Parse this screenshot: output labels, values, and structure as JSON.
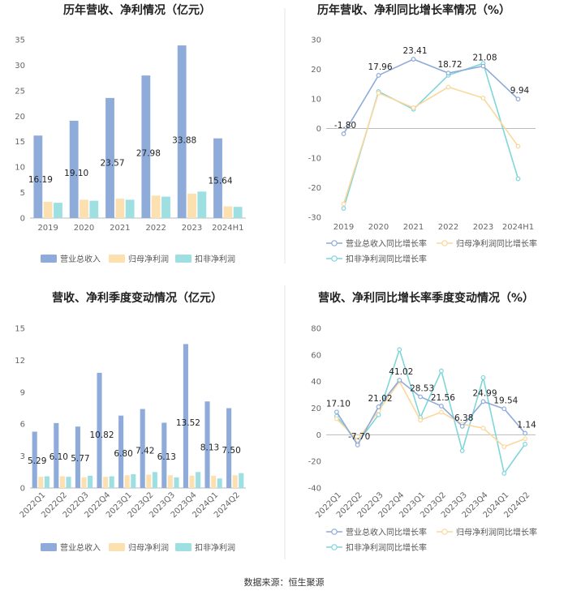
{
  "source_text": "数据来源：恒生聚源",
  "colors": {
    "revenue": "#8eabd9",
    "parent_profit": "#fde0b0",
    "deducted_profit": "#9ee0e2",
    "revenue_line": "#8eabd9",
    "parent_line": "#fbd79c",
    "deducted_line": "#7fd6d9",
    "axis": "#bbbbbb",
    "divider": "#e6e6e6"
  },
  "chart_data": [
    {
      "id": "annual_amount",
      "type": "bar",
      "title": "历年营收、净利情况（亿元）",
      "categories": [
        "2019",
        "2020",
        "2021",
        "2022",
        "2023",
        "2024H1"
      ],
      "ylim": [
        0,
        35
      ],
      "yticks": [
        "0",
        "5",
        "10",
        "15",
        "20",
        "25",
        "30",
        "35"
      ],
      "series": [
        {
          "name": "营业总收入",
          "values": [
            16.19,
            19.1,
            23.57,
            27.98,
            33.88,
            15.64
          ],
          "labels": [
            "16.19",
            "19.10",
            "23.57",
            "27.98",
            "33.88",
            "15.64"
          ]
        },
        {
          "name": "归母净利润",
          "values": [
            3.2,
            3.6,
            3.8,
            4.4,
            4.8,
            2.3
          ]
        },
        {
          "name": "扣非净利润",
          "values": [
            3.0,
            3.4,
            3.6,
            4.2,
            5.2,
            2.2
          ]
        }
      ]
    },
    {
      "id": "annual_growth",
      "type": "line",
      "title": "历年营收、净利同比增长率情况（%）",
      "categories": [
        "2019",
        "2020",
        "2021",
        "2022",
        "2023",
        "2024H1"
      ],
      "ylim": [
        -30,
        30
      ],
      "yticks": [
        "-30",
        "-20",
        "-10",
        "0",
        "10",
        "20",
        "30"
      ],
      "series": [
        {
          "name": "营业总收入同比增长率",
          "values": [
            -1.8,
            17.96,
            23.41,
            18.72,
            21.08,
            9.94
          ],
          "labels": [
            "-1.80",
            "17.96",
            "23.41",
            "18.72",
            "21.08",
            "9.94"
          ]
        },
        {
          "name": "归母净利润同比增长率",
          "values": [
            -25.5,
            12.0,
            7.0,
            14.0,
            10.3,
            -6.0
          ]
        },
        {
          "name": "扣非净利润同比增长率",
          "values": [
            -27.0,
            12.5,
            6.5,
            18.0,
            22.0,
            -17.0
          ]
        }
      ]
    },
    {
      "id": "quarterly_amount",
      "type": "bar",
      "title": "营收、净利季度变动情况（亿元）",
      "categories": [
        "2022Q1",
        "2022Q2",
        "2022Q3",
        "2022Q4",
        "2023Q1",
        "2023Q2",
        "2023Q3",
        "2023Q4",
        "2024Q1",
        "2024Q2"
      ],
      "ylim": [
        0,
        15
      ],
      "yticks": [
        "0",
        "3",
        "6",
        "9",
        "12",
        "15"
      ],
      "series": [
        {
          "name": "营业总收入",
          "values": [
            5.29,
            6.1,
            5.77,
            10.82,
            6.8,
            7.42,
            6.13,
            13.52,
            8.13,
            7.5
          ],
          "labels": [
            "5.29",
            "6.10",
            "5.77",
            "10.82",
            "6.80",
            "7.42",
            "6.13",
            "13.52",
            "8.13",
            "7.50"
          ]
        },
        {
          "name": "归母净利润",
          "values": [
            1.05,
            1.1,
            1.0,
            1.05,
            1.2,
            1.25,
            1.2,
            1.15,
            1.15,
            1.2
          ]
        },
        {
          "name": "扣非净利润",
          "values": [
            1.1,
            1.05,
            1.15,
            1.1,
            1.3,
            1.5,
            1.0,
            1.5,
            0.9,
            1.4
          ]
        }
      ]
    },
    {
      "id": "quarterly_growth",
      "type": "line",
      "title": "营收、净利同比增长率季度变动情况（%）",
      "categories": [
        "2022Q1",
        "2022Q2",
        "2022Q3",
        "2022Q4",
        "2023Q1",
        "2023Q2",
        "2023Q3",
        "2023Q4",
        "2024Q1",
        "2024Q2"
      ],
      "ylim": [
        -40,
        80
      ],
      "yticks": [
        "-40",
        "-20",
        "0",
        "20",
        "40",
        "60",
        "80"
      ],
      "series": [
        {
          "name": "营业总收入同比增长率",
          "values": [
            17.1,
            -7.7,
            21.02,
            41.02,
            28.53,
            21.56,
            6.38,
            24.99,
            19.54,
            1.14
          ],
          "labels": [
            "17.10",
            "-7.70",
            "21.02",
            "41.02",
            "28.53",
            "21.56",
            "6.38",
            "24.99",
            "19.54",
            "1.14"
          ]
        },
        {
          "name": "归母净利润同比增长率",
          "values": [
            12.0,
            -4.0,
            18.0,
            40.0,
            11.0,
            17.0,
            8.0,
            5.0,
            -9.0,
            -3.0
          ]
        },
        {
          "name": "扣非净利润同比增长率",
          "values": [
            14.0,
            -6.0,
            15.0,
            64.0,
            13.0,
            48.0,
            -12.0,
            43.0,
            -29.0,
            -7.0
          ]
        }
      ]
    }
  ]
}
